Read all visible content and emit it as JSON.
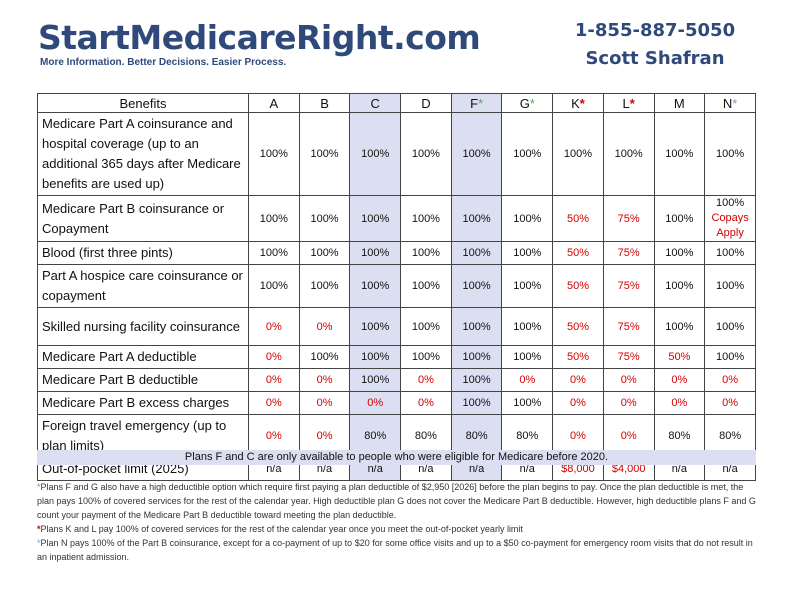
{
  "header": {
    "brand": "StartMedicareRight.com",
    "tagline": "More Information. Better Decisions. Easier Process.",
    "phone": "1-855-887-5050",
    "name": "Scott Shafran"
  },
  "table": {
    "benefits_header": "Benefits",
    "plans": [
      {
        "letter": "A",
        "star": ""
      },
      {
        "letter": "B",
        "star": ""
      },
      {
        "letter": "C",
        "star": ""
      },
      {
        "letter": "D",
        "star": ""
      },
      {
        "letter": "F",
        "star": "*"
      },
      {
        "letter": "G",
        "star": "*"
      },
      {
        "letter": "K",
        "star": "*"
      },
      {
        "letter": "L",
        "star": "*"
      },
      {
        "letter": "M",
        "star": ""
      },
      {
        "letter": "N",
        "star": "*"
      }
    ],
    "rows": [
      {
        "benefit": "Medicare Part A coinsurance and hospital coverage (up to an additional 365 days after Medicare benefits are used up)",
        "values": [
          "100%",
          "100%",
          "100%",
          "100%",
          "100%",
          "100%",
          "100%",
          "100%",
          "100%",
          "100%"
        ]
      },
      {
        "benefit": "Medicare Part B coinsurance or Copayment",
        "values": [
          "100%",
          "100%",
          "100%",
          "100%",
          "100%",
          "100%",
          "50%",
          "75%",
          "100%",
          "100%"
        ],
        "n_note": "Copays Apply"
      },
      {
        "benefit": "Blood (first three pints)",
        "values": [
          "100%",
          "100%",
          "100%",
          "100%",
          "100%",
          "100%",
          "50%",
          "75%",
          "100%",
          "100%"
        ]
      },
      {
        "benefit": "Part A hospice care coinsurance or copayment",
        "values": [
          "100%",
          "100%",
          "100%",
          "100%",
          "100%",
          "100%",
          "50%",
          "75%",
          "100%",
          "100%"
        ]
      },
      {
        "benefit": "Skilled nursing facility coinsurance",
        "values": [
          "0%",
          "0%",
          "100%",
          "100%",
          "100%",
          "100%",
          "50%",
          "75%",
          "100%",
          "100%"
        ]
      },
      {
        "benefit": "Medicare Part A deductible",
        "values": [
          "0%",
          "100%",
          "100%",
          "100%",
          "100%",
          "100%",
          "50%",
          "75%",
          "50%",
          "100%"
        ]
      },
      {
        "benefit": "Medicare Part B deductible",
        "values": [
          "0%",
          "0%",
          "100%",
          "0%",
          "100%",
          "0%",
          "0%",
          "0%",
          "0%",
          "0%"
        ]
      },
      {
        "benefit": "Medicare Part B excess charges",
        "values": [
          "0%",
          "0%",
          "0%",
          "0%",
          "100%",
          "100%",
          "0%",
          "0%",
          "0%",
          "0%"
        ]
      },
      {
        "benefit": "Foreign travel emergency (up to plan limits)",
        "values": [
          "0%",
          "0%",
          "80%",
          "80%",
          "80%",
          "80%",
          "0%",
          "0%",
          "80%",
          "80%"
        ]
      },
      {
        "benefit": "Out-of-pocket limit (2025)",
        "values": [
          "n/a",
          "n/a",
          "n/a",
          "n/a",
          "n/a",
          "n/a",
          "$8,000",
          "$4,000",
          "n/a",
          "n/a"
        ]
      }
    ],
    "banner": "Plans F and C are only available to people who were eligible for Medicare before 2020."
  },
  "footnotes": {
    "star": "*",
    "fg": "Plans F and G also have a high deductible option which require first paying a plan deductible of $2,950 [2026] before the plan begins to pay. Once the plan deductible is met, the plan pays 100% of covered services for the rest of the calendar year. High deductible plan G does not cover the Medicare Part B deductible. However, high deductible plans F and G count your payment of the Medicare Part B deductible toward meeting the plan deductible.",
    "kl": "Plans K and L pay 100% of covered services for the rest of the calendar year once you meet the out-of-pocket yearly limit",
    "n": "Plan N pays 100% of the Part B coinsurance, except for a co-payment of up to $20 for some office visits and up to a $50 co-payment for emergency room visits that do not result in an inpatient admission."
  },
  "colors": {
    "brand": "#2f4a7a",
    "shade": "#dcdff1",
    "red": "#d40000",
    "green_star": "#4db04a",
    "blue_star": "#6a9fd3"
  }
}
